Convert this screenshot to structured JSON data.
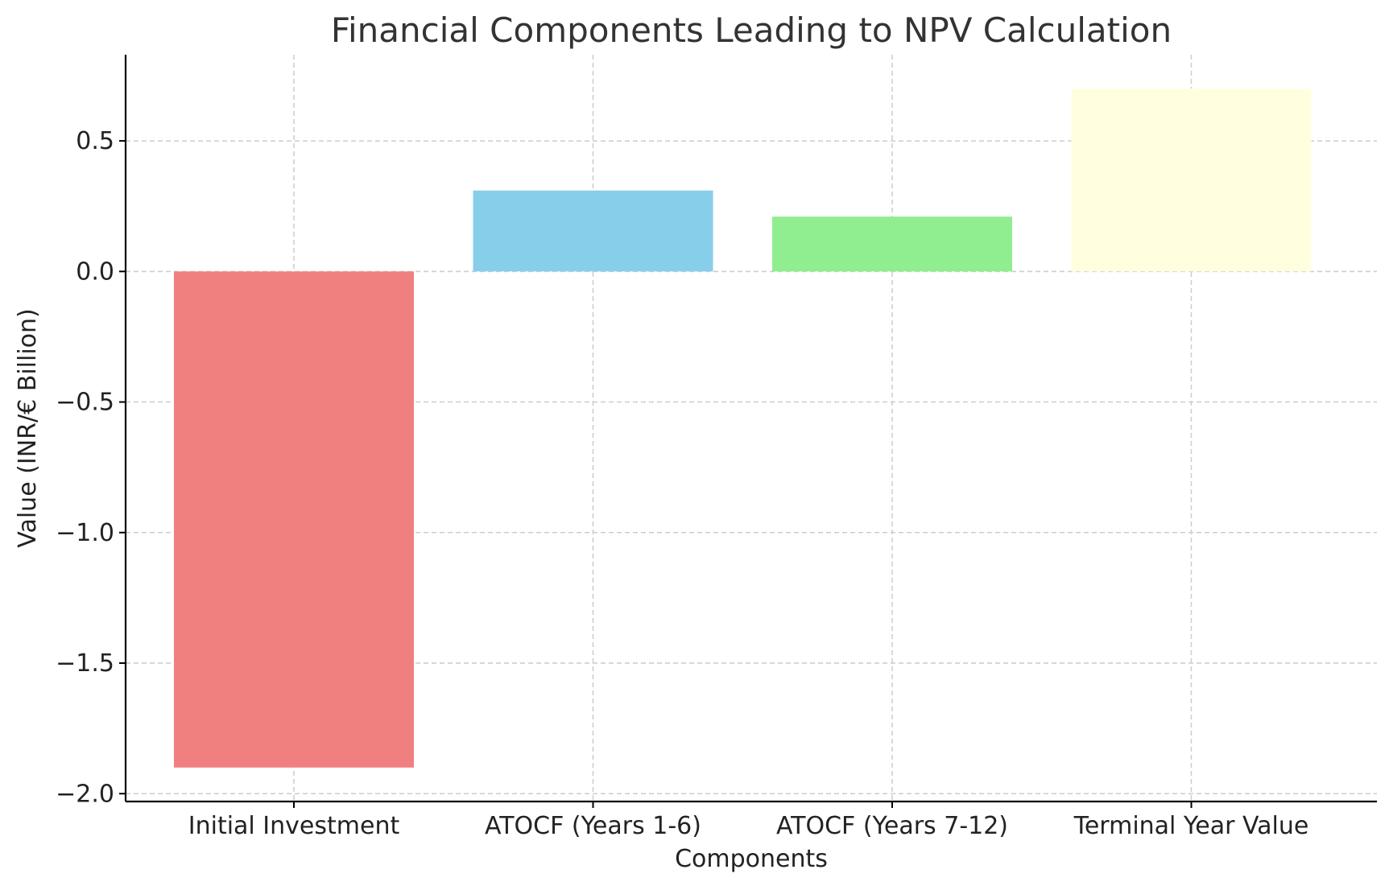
{
  "chart_data": {
    "type": "bar",
    "title": "Financial Components Leading to NPV Calculation",
    "xlabel": "Components",
    "ylabel": "Value (INR/€ Billion)",
    "categories": [
      "Initial Investment",
      "ATOCF (Years 1-6)",
      "ATOCF (Years 7-12)",
      "Terminal Year Value"
    ],
    "values": [
      -1.9,
      0.31,
      0.21,
      0.7
    ],
    "colors": [
      "#f08080",
      "#87ceeb",
      "#90ee90",
      "#ffffe0"
    ],
    "ylim": [
      -2.03,
      0.83
    ],
    "yticks": [
      -2.0,
      -1.5,
      -1.0,
      -0.5,
      0.0,
      0.5
    ],
    "ytick_labels": [
      "−2.0",
      "−1.5",
      "−1.0",
      "−0.5",
      "0.0",
      "0.5"
    ],
    "grid": true
  }
}
